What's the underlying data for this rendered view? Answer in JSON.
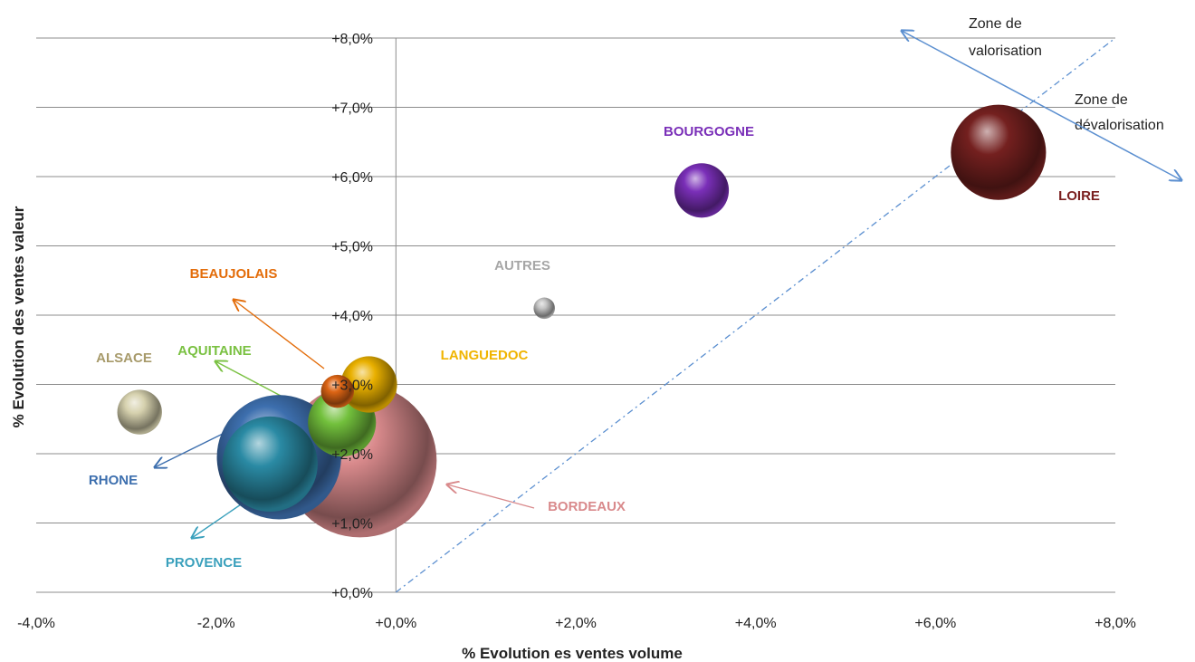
{
  "chart_data": {
    "type": "bubble",
    "xlabel": "% Evolution es ventes volume",
    "ylabel": "% Evolution des  ventes valeur",
    "xlim": [
      -4,
      8
    ],
    "ylim": [
      0,
      8
    ],
    "x_ticks": [
      "-4,0%",
      "-2,0%",
      "+0,0%",
      "+2,0%",
      "+4,0%",
      "+6,0%",
      "+8,0%"
    ],
    "y_ticks": [
      "+0,0%",
      "+1,0%",
      "+2,0%",
      "+3,0%",
      "+4,0%",
      "+5,0%",
      "+6,0%",
      "+7,0%",
      "+8,0%"
    ],
    "grid": "horizontal",
    "reference_line": {
      "style": "dash-dot",
      "from": [
        0,
        0
      ],
      "to": [
        8,
        8
      ]
    },
    "annotations": [
      "Zone de valorisation",
      "Zone de dévalorisation"
    ],
    "series": [
      {
        "name": "BORDEAUX",
        "x": -0.4,
        "y": 1.9,
        "size": 7.9,
        "color": "#d98a8c"
      },
      {
        "name": "RHONE",
        "x": -1.3,
        "y": 1.95,
        "size": 6.4,
        "color": "#3d6fae"
      },
      {
        "name": "PROVENCE",
        "x": -1.4,
        "y": 1.85,
        "size": 4.9,
        "color": "#2a8aa4"
      },
      {
        "name": "AQUITAINE",
        "x": -0.6,
        "y": 2.45,
        "size": 3.5,
        "color": "#72c03c"
      },
      {
        "name": "LANGUEDOC",
        "x": -0.3,
        "y": 3.0,
        "size": 2.9,
        "color": "#e9b000"
      },
      {
        "name": "BEAUJOLAIS",
        "x": -0.65,
        "y": 2.9,
        "size": 1.7,
        "color": "#dc6414"
      },
      {
        "name": "ALSACE",
        "x": -2.85,
        "y": 2.6,
        "size": 2.3,
        "color": "#d6d1ae"
      },
      {
        "name": "AUTRES",
        "x": 1.65,
        "y": 4.1,
        "size": 1.1,
        "color": "#c3c3c3"
      },
      {
        "name": "BOURGOGNE",
        "x": 3.4,
        "y": 5.8,
        "size": 2.8,
        "color": "#7a2fb8"
      },
      {
        "name": "LOIRE",
        "x": 6.7,
        "y": 6.35,
        "size": 4.9,
        "color": "#74201f"
      }
    ],
    "label_colors": {
      "BORDEAUX": "#d98a8c",
      "RHONE": "#3d6fae",
      "PROVENCE": "#3aa0bc",
      "AQUITAINE": "#7ac142",
      "LANGUEDOC": "#f0b400",
      "BEAUJOLAIS": "#e36c09",
      "ALSACE": "#a79a6a",
      "AUTRES": "#a6a6a6",
      "BOURGOGNE": "#7a2fb8",
      "LOIRE": "#7a1f1f"
    }
  }
}
